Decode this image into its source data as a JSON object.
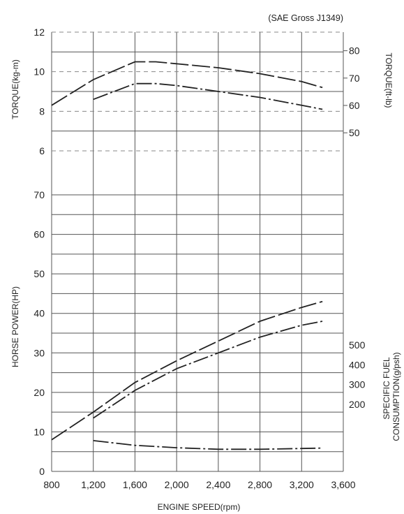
{
  "chart_data": {
    "type": "line",
    "title": "(SAE Gross J1349)",
    "xlabel": "ENGINE SPEED(rpm)",
    "x_ticks": [
      "800",
      "1,200",
      "1,600",
      "2,000",
      "2,400",
      "2,800",
      "3,200",
      "3,600"
    ],
    "xlim": [
      800,
      3600
    ],
    "panels": {
      "torque": {
        "ylabel_left": "TORQUE(kg-m)",
        "ylabel_right": "TORQUE(ft-lb)",
        "left_ticks": [
          "6",
          "8",
          "10",
          "12"
        ],
        "right_ticks": [
          "50",
          "60",
          "70",
          "80"
        ],
        "ylim": [
          6,
          12
        ]
      },
      "power": {
        "ylabel_left": "HORSE POWER(HP)",
        "left_ticks": [
          "0",
          "10",
          "20",
          "30",
          "40",
          "50",
          "60",
          "70"
        ],
        "ylim": [
          0,
          75
        ]
      },
      "fuel": {
        "ylabel_right_line1": "SPECIFIC FUEL",
        "ylabel_right_line2": "CONSUMPTION(g/psh)",
        "right_ticks": [
          "200",
          "300",
          "400",
          "500"
        ]
      }
    },
    "series": [
      {
        "panel": "torque",
        "style": "long-dash",
        "x": [
          800,
          1200,
          1600,
          1800,
          2000,
          2400,
          2800,
          3200,
          3400
        ],
        "y": [
          8.3,
          9.6,
          10.5,
          10.5,
          10.4,
          10.2,
          9.9,
          9.5,
          9.2
        ]
      },
      {
        "panel": "torque",
        "style": "dash-dot",
        "x": [
          1200,
          1600,
          1800,
          2000,
          2400,
          2800,
          3200,
          3400
        ],
        "y": [
          8.6,
          9.4,
          9.4,
          9.3,
          9.0,
          8.7,
          8.3,
          8.1
        ]
      },
      {
        "panel": "power",
        "style": "long-dash",
        "x": [
          800,
          1200,
          1600,
          2000,
          2400,
          2800,
          3200,
          3400
        ],
        "y": [
          8,
          15,
          22.5,
          28,
          33,
          38,
          41.5,
          43
        ]
      },
      {
        "panel": "power",
        "style": "dash-dot",
        "x": [
          1200,
          1600,
          2000,
          2400,
          2800,
          3200,
          3400
        ],
        "y": [
          13.5,
          20.5,
          26,
          30,
          34,
          37,
          38
        ]
      },
      {
        "panel": "power",
        "style": "dash-dot",
        "x": [
          1200,
          1600,
          2000,
          2400,
          2800,
          3200,
          3400
        ],
        "y": [
          7.8,
          6.6,
          6.0,
          5.6,
          5.6,
          5.8,
          5.9
        ]
      }
    ],
    "grid": true
  }
}
